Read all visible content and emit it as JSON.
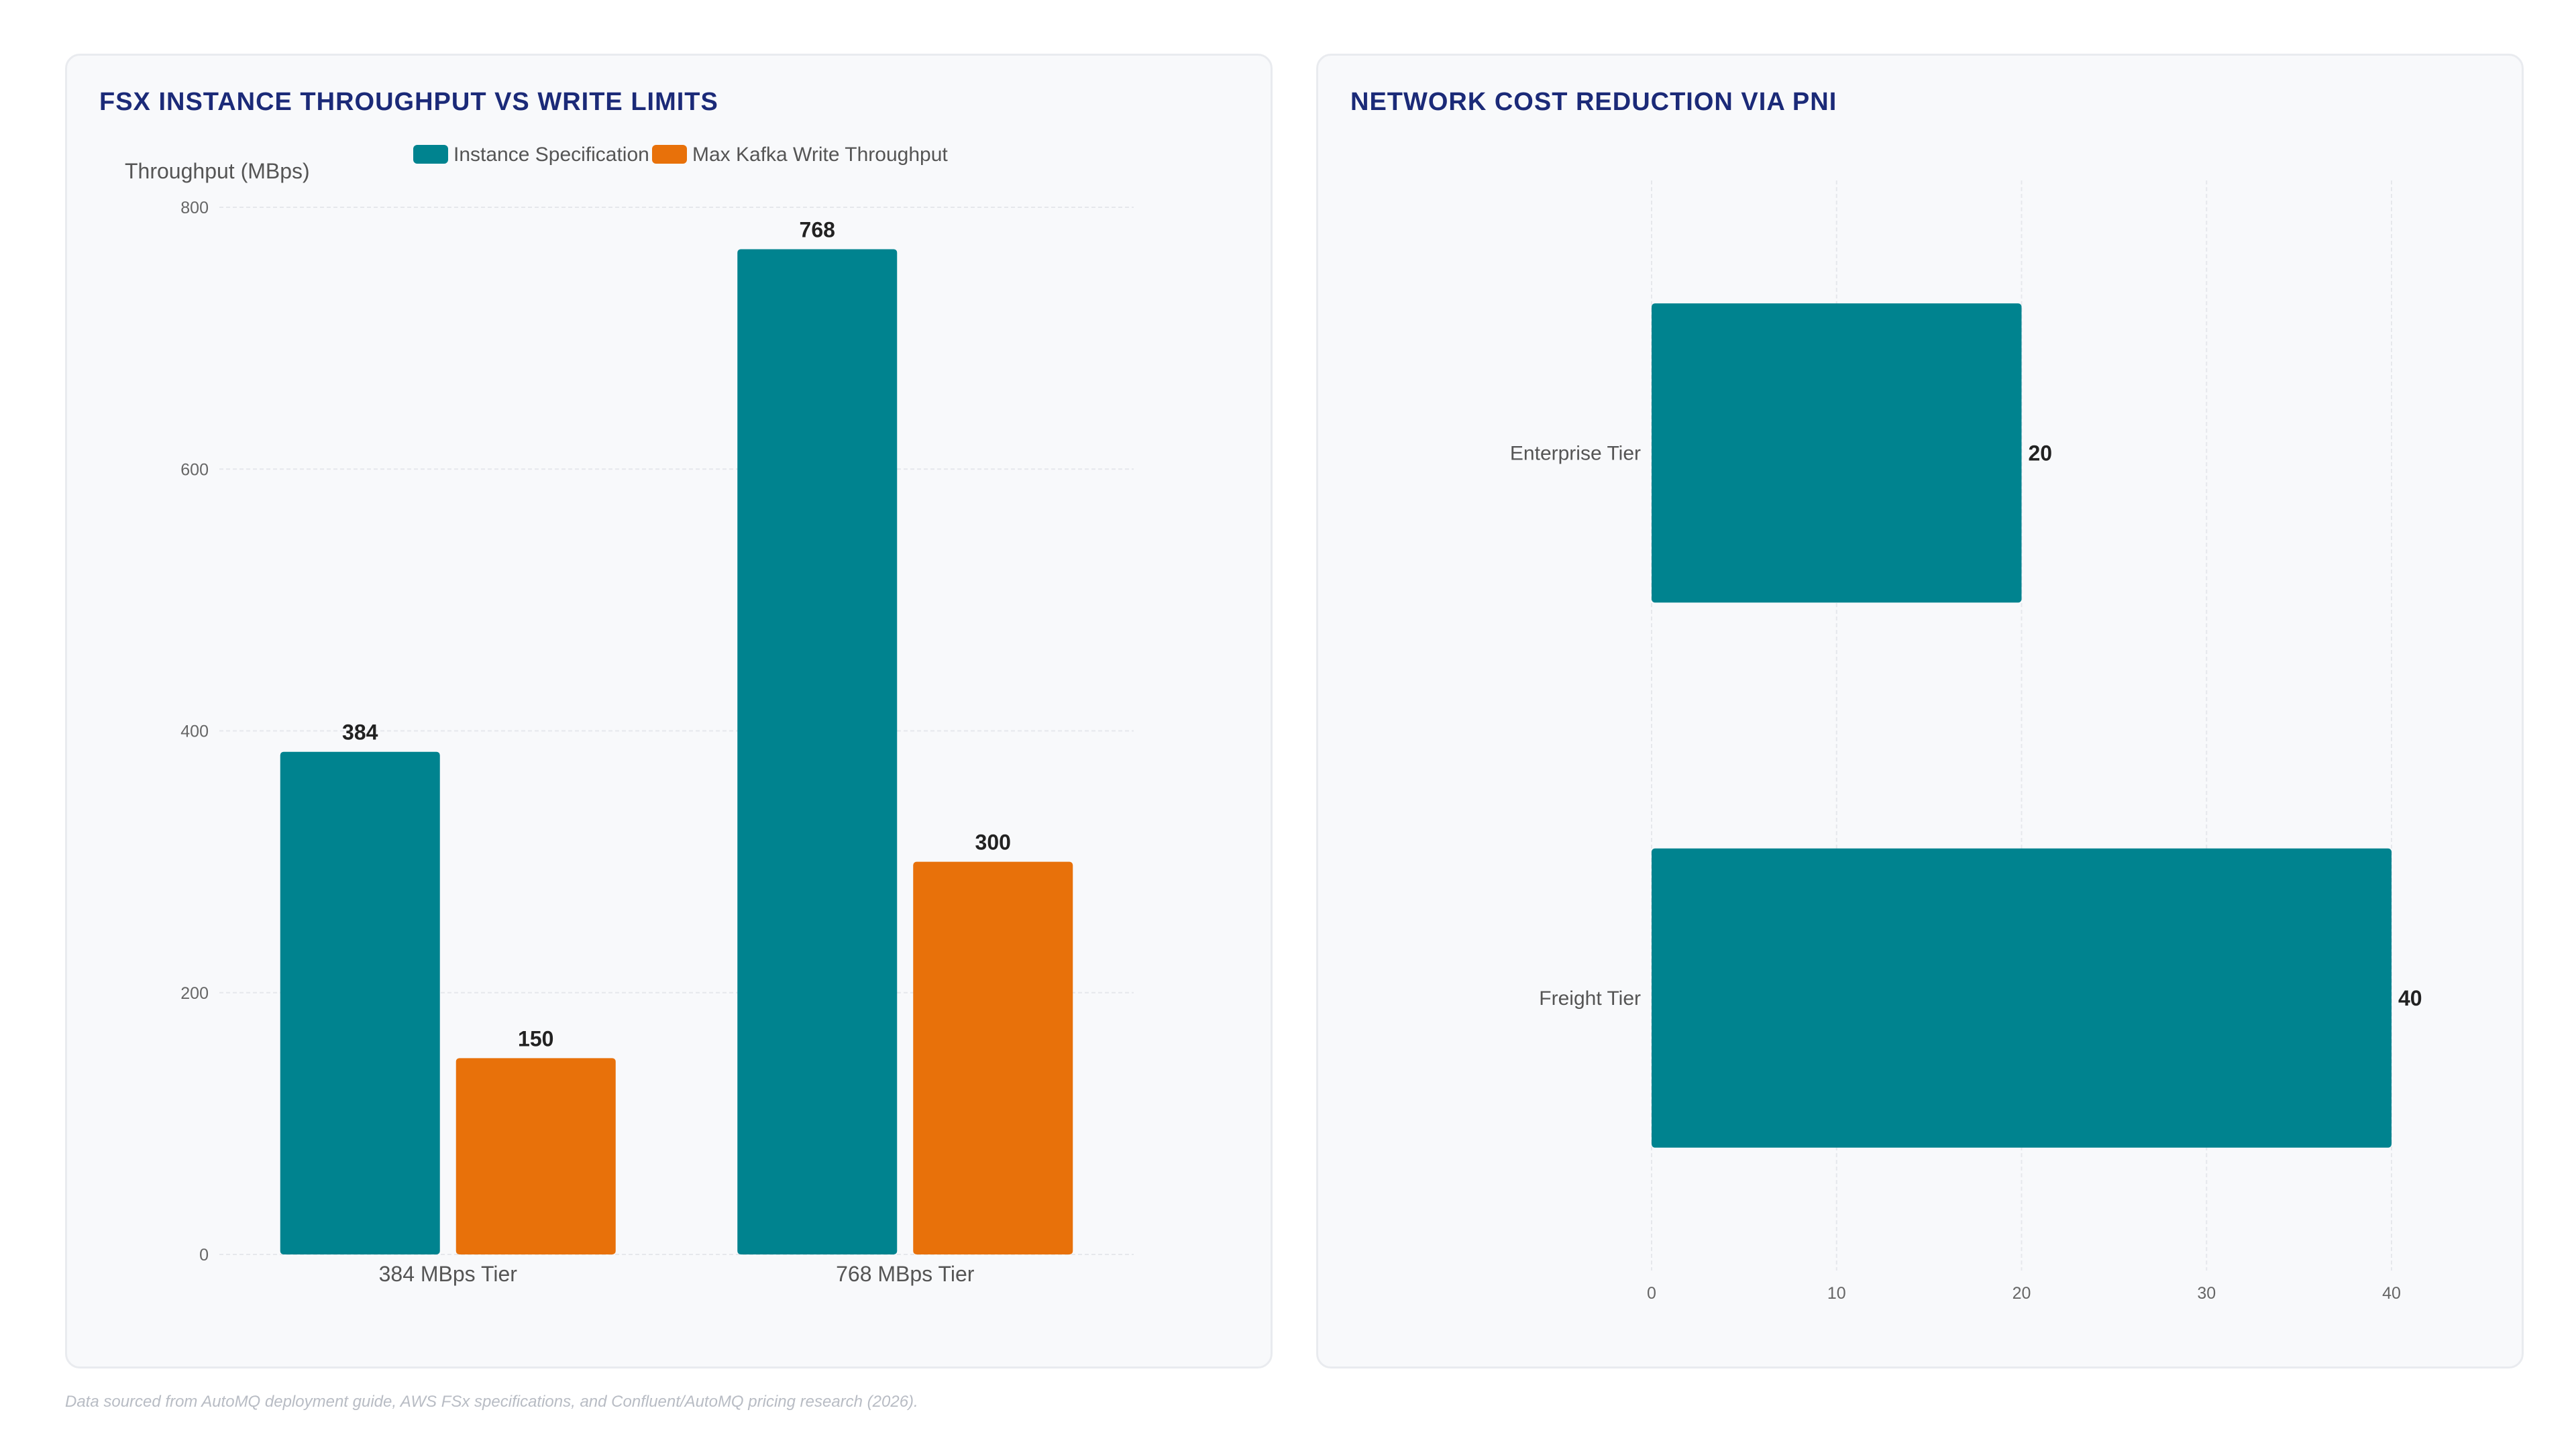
{
  "colors": {
    "teal": "#00838f",
    "orange": "#e8710a",
    "title": "#1b2a78",
    "grid": "#e6e8ec",
    "tick": "#666666",
    "label": "#222222"
  },
  "left_card": {
    "title": "FSX INSTANCE THROUGHPUT VS WRITE LIMITS"
  },
  "right_card": {
    "title": "NETWORK COST REDUCTION VIA PNI"
  },
  "footnote": "Data sourced from AutoMQ deployment guide, AWS FSx specifications, and Confluent/AutoMQ pricing research (2026).",
  "chart_data": [
    {
      "type": "bar",
      "title": "FSX INSTANCE THROUGHPUT VS WRITE LIMITS",
      "ylabel": "Throughput (MBps)",
      "xlabel": "",
      "categories": [
        "384 MBps Tier",
        "768 MBps Tier"
      ],
      "series": [
        {
          "name": "Instance Specification",
          "values": [
            384,
            768
          ],
          "color": "#00838f"
        },
        {
          "name": "Max Kafka Write Throughput",
          "values": [
            150,
            300
          ],
          "color": "#e8710a"
        }
      ],
      "ylim": [
        0,
        800
      ],
      "yticks": [
        0,
        200,
        400,
        600,
        800
      ],
      "legend": "top-center",
      "grid": true
    },
    {
      "type": "bar",
      "orientation": "horizontal",
      "title": "NETWORK COST REDUCTION VIA PNI",
      "categories": [
        "Enterprise Tier",
        "Freight Tier"
      ],
      "values": [
        20,
        40
      ],
      "color": "#00838f",
      "xlim": [
        0,
        40
      ],
      "xticks": [
        0,
        10,
        20,
        30,
        40
      ],
      "grid": true
    }
  ]
}
